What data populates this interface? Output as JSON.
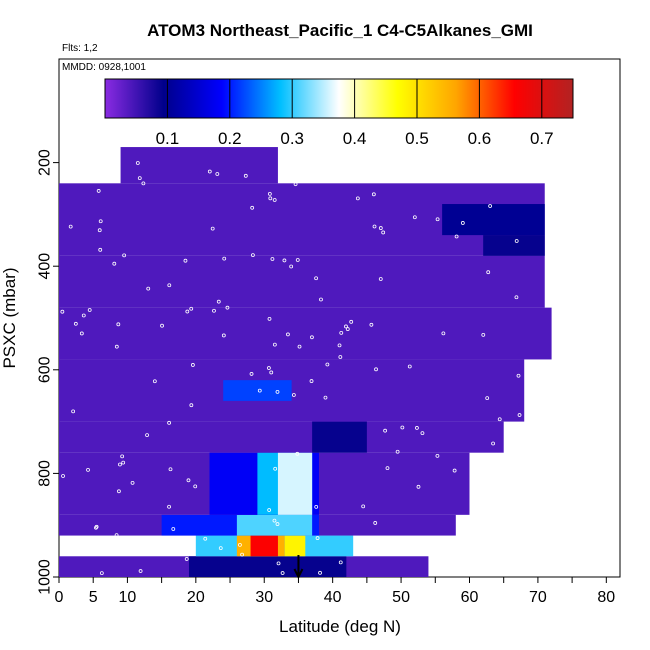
{
  "chart_data": {
    "type": "heatmap",
    "title": "ATOM3 Northeast_Pacific_1 C4-C5Alkanes_GMI",
    "flights_label": "Flts: 1,2",
    "date_label": "MMDD: 0928,1001",
    "xlabel": "Latitude (deg N)",
    "ylabel": "PSXC (mbar)",
    "xlim": [
      0,
      82
    ],
    "ylim": [
      1000,
      0
    ],
    "x_ticks": [
      0,
      5,
      10,
      20,
      30,
      40,
      50,
      60,
      70,
      80
    ],
    "y_ticks": [
      200,
      400,
      600,
      800,
      1000
    ],
    "colorbar": {
      "range": [
        0,
        0.75
      ],
      "ticks": [
        0.1,
        0.2,
        0.3,
        0.4,
        0.5,
        0.6,
        0.7
      ],
      "colors": [
        "#8a2be2",
        "#00008b",
        "#0000ff",
        "#00bfff",
        "#ffffff",
        "#ffff00",
        "#ffa500",
        "#ff0000",
        "#b22222"
      ]
    },
    "regions": [
      {
        "lat": [
          0,
          54
        ],
        "p": [
          960,
          1000
        ],
        "value": 0.04
      },
      {
        "lat": [
          19,
          42
        ],
        "p": [
          960,
          1000
        ],
        "value": 0.09
      },
      {
        "lat": [
          20,
          43
        ],
        "p": [
          920,
          960
        ],
        "value": 0.3
      },
      {
        "lat": [
          26,
          33
        ],
        "p": [
          920,
          960
        ],
        "value": 0.55
      },
      {
        "lat": [
          28,
          32
        ],
        "p": [
          920,
          960
        ],
        "value": 0.66
      },
      {
        "lat": [
          33,
          36
        ],
        "p": [
          920,
          960
        ],
        "value": 0.48
      },
      {
        "lat": [
          0,
          58
        ],
        "p": [
          880,
          920
        ],
        "value": 0.04
      },
      {
        "lat": [
          15,
          38
        ],
        "p": [
          880,
          920
        ],
        "value": 0.2
      },
      {
        "lat": [
          26,
          37
        ],
        "p": [
          880,
          920
        ],
        "value": 0.31
      },
      {
        "lat": [
          0,
          60
        ],
        "p": [
          760,
          880
        ],
        "value": 0.04
      },
      {
        "lat": [
          22,
          38
        ],
        "p": [
          760,
          880
        ],
        "value": 0.18
      },
      {
        "lat": [
          29,
          37
        ],
        "p": [
          760,
          880
        ],
        "value": 0.28
      },
      {
        "lat": [
          32,
          37
        ],
        "p": [
          760,
          880
        ],
        "value": 0.36
      },
      {
        "lat": [
          0,
          65
        ],
        "p": [
          700,
          760
        ],
        "value": 0.04
      },
      {
        "lat": [
          37,
          45
        ],
        "p": [
          700,
          760
        ],
        "value": 0.09
      },
      {
        "lat": [
          0,
          68
        ],
        "p": [
          580,
          700
        ],
        "value": 0.04
      },
      {
        "lat": [
          24,
          34
        ],
        "p": [
          620,
          660
        ],
        "value": 0.22
      },
      {
        "lat": [
          0,
          72
        ],
        "p": [
          480,
          580
        ],
        "value": 0.04
      },
      {
        "lat": [
          0,
          71
        ],
        "p": [
          380,
          480
        ],
        "value": 0.04
      },
      {
        "lat": [
          0,
          71
        ],
        "p": [
          240,
          380
        ],
        "value": 0.04
      },
      {
        "lat": [
          56,
          71
        ],
        "p": [
          280,
          340
        ],
        "value": 0.1
      },
      {
        "lat": [
          62,
          71
        ],
        "p": [
          340,
          380
        ],
        "value": 0.09
      },
      {
        "lat": [
          9,
          32
        ],
        "p": [
          170,
          240
        ],
        "value": 0.04
      }
    ],
    "marker": {
      "lat": 35,
      "p": 1000
    }
  }
}
